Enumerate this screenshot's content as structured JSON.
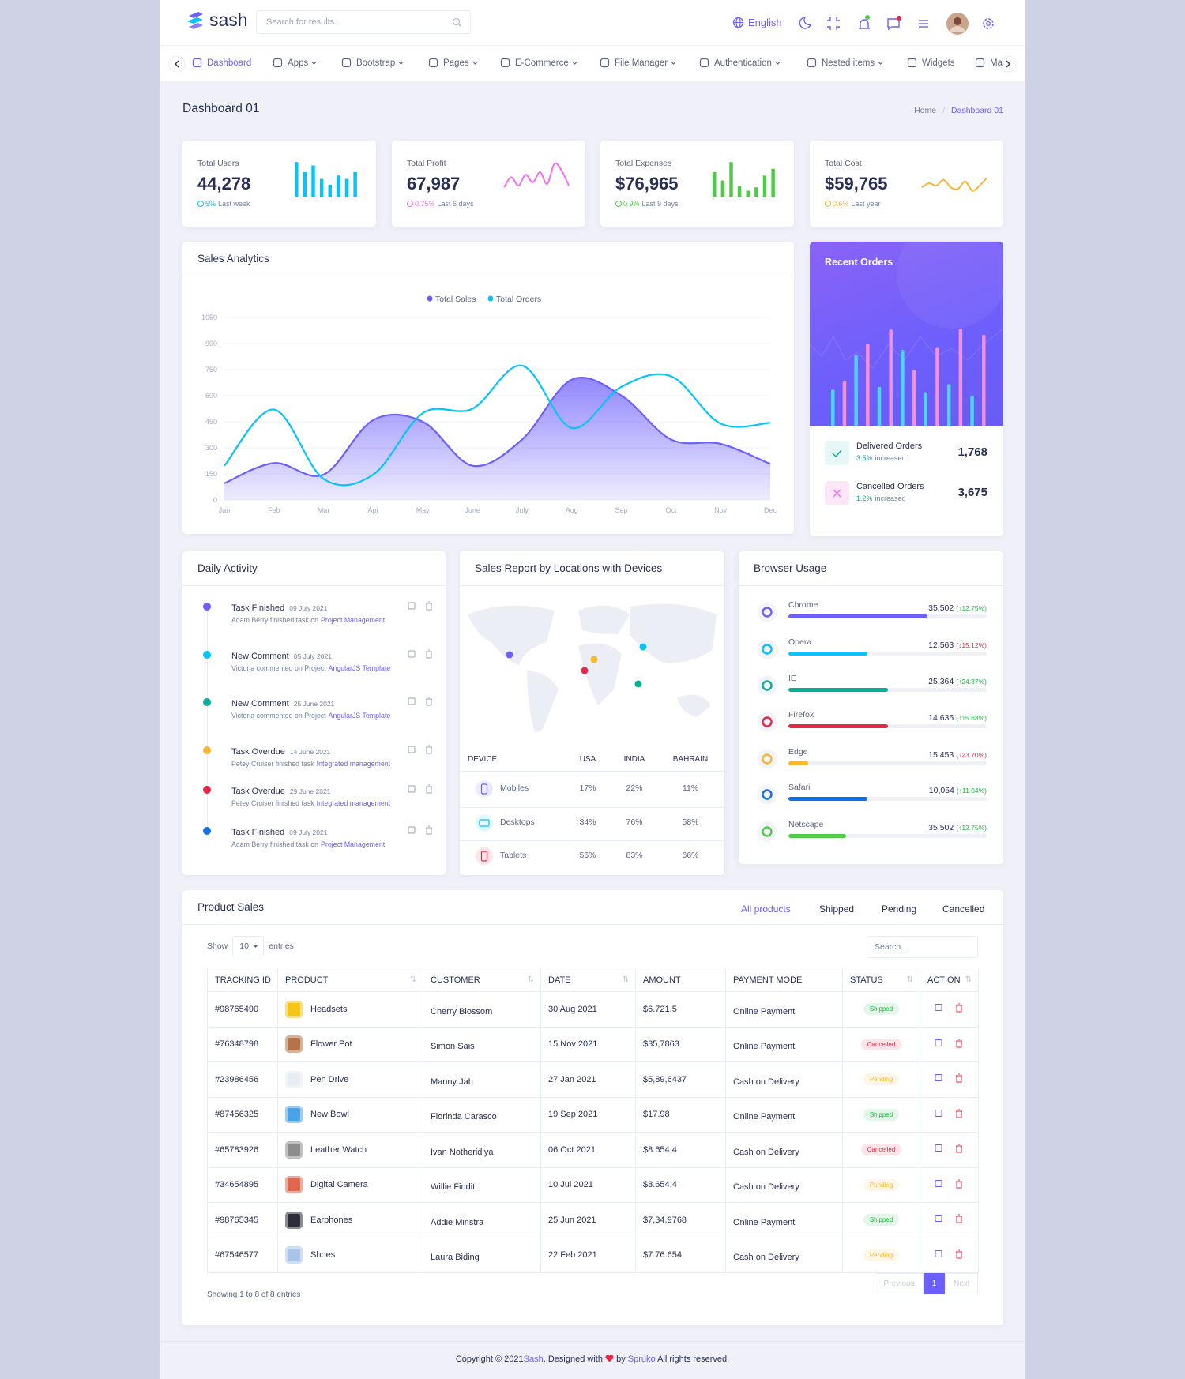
{
  "header": {
    "logo": "sash",
    "search": "Search for results...",
    "language": "English"
  },
  "nav": [
    {
      "label": "Dashboard",
      "dropdown": false
    },
    {
      "label": "Apps",
      "dropdown": true
    },
    {
      "label": "Bootstrap",
      "dropdown": true
    },
    {
      "label": "Pages",
      "dropdown": true
    },
    {
      "label": "E-Commerce",
      "dropdown": true
    },
    {
      "label": "File Manager",
      "dropdown": true
    },
    {
      "label": "Authentication",
      "dropdown": true
    },
    {
      "label": "Nested items",
      "dropdown": true
    },
    {
      "label": "Widgets",
      "dropdown": false
    },
    {
      "label": "Ma",
      "dropdown": false
    }
  ],
  "page": {
    "title": "Dashboard 01",
    "breadcrumb": [
      "Home",
      "Dashboard 01"
    ]
  },
  "stats": [
    {
      "label": "Total Users",
      "value": "44,278",
      "change": "5%",
      "period": "Last week",
      "color": "#05c3fb",
      "spark_type": "bar",
      "spark": [
        42,
        30,
        38,
        22,
        15,
        26,
        22,
        30
      ],
      "spark_lim": [
        0,
        45
      ]
    },
    {
      "label": "Total Profit",
      "value": "67,987",
      "change": "0.75%",
      "period": "Last 6 days",
      "color": "#f46ef4",
      "spark_type": "line",
      "spark": [
        12,
        24,
        14,
        27,
        18,
        30,
        16,
        40,
        32,
        14
      ],
      "spark_lim": [
        0,
        45
      ]
    },
    {
      "label": "Total Expenses",
      "value": "$76,965",
      "change": "0.9%",
      "period": "Last 9 days",
      "color": "#4ecc48",
      "spark_type": "bar",
      "spark": [
        30,
        20,
        42,
        14,
        8,
        12,
        26,
        34
      ],
      "spark_lim": [
        0,
        45
      ]
    },
    {
      "label": "Total Cost",
      "value": "$59,765",
      "change": "0.6%",
      "period": "Last year",
      "color": "#f7b731",
      "spark_type": "line",
      "spark": [
        12,
        17,
        14,
        21,
        12,
        10,
        19,
        8,
        14,
        23
      ],
      "spark_lim": [
        0,
        45
      ]
    }
  ],
  "chart_data": {
    "type": "line",
    "title": "Sales Analytics",
    "categories": [
      "Jan",
      "Feb",
      "Mar",
      "Apr",
      "May",
      "June",
      "July",
      "Aug",
      "Sep",
      "Oct",
      "Nov",
      "Dec"
    ],
    "series": [
      {
        "name": "Total Sales",
        "color": "#6c5ffc",
        "area": true,
        "values": [
          96,
          212,
          146,
          460,
          450,
          197,
          348,
          692,
          601,
          348,
          323,
          207
        ]
      },
      {
        "name": "Total Orders",
        "color": "#05c3fb",
        "area": false,
        "values": [
          197,
          520,
          121,
          146,
          500,
          525,
          773,
          414,
          651,
          712,
          439,
          444
        ]
      }
    ],
    "ylim": [
      0,
      1050
    ],
    "yticks": [
      0,
      150,
      300,
      450,
      600,
      750,
      900,
      1050
    ],
    "grid": true,
    "legend": "top"
  },
  "recent_orders": {
    "title": "Recent Orders",
    "bars": [
      42,
      52,
      81,
      94,
      45,
      110,
      87,
      64,
      39,
      90,
      48,
      111,
      35,
      104
    ],
    "ylim": [
      0,
      120
    ],
    "colors": [
      "#4dd4f0",
      "#f58fd8"
    ],
    "items": [
      {
        "label": "Delivered Orders",
        "change": "3.5%",
        "note": "increased",
        "value": "1,768",
        "color": "#09ad95"
      },
      {
        "label": "Cancelled Orders",
        "change": "1.2%",
        "note": "increased",
        "value": "3,675",
        "color": "#09ad95"
      }
    ]
  },
  "daily_activity": {
    "title": "Daily Activity",
    "items": [
      {
        "title": "Task Finished",
        "date": "09 July 2021",
        "text": "Adam Berry finished task on",
        "link": "Project Management",
        "color": "#6c5ffc"
      },
      {
        "title": "New Comment",
        "date": "05 July 2021",
        "text": "Victoria commented on Project",
        "link": "AngularJS Template",
        "color": "#05c3fb"
      },
      {
        "title": "New Comment",
        "date": "25 June 2021",
        "text": "Victoria commented on Project",
        "link": "AngularJS Template",
        "color": "#09ad95"
      },
      {
        "title": "Task Overdue",
        "date": "14 June 2021",
        "text": "Petey Cruiser finished task",
        "link": "Integrated management",
        "color": "#f7b731"
      },
      {
        "title": "Task Overdue",
        "date": "29 June 2021",
        "text": "Petey Cruiser finished task",
        "link": "Integrated management",
        "color": "#e82646"
      },
      {
        "title": "Task Finished",
        "date": "09 July 2021",
        "text": "Adam Berry finished task on",
        "link": "Project Management",
        "color": "#1170e4"
      }
    ]
  },
  "sales_report": {
    "title": "Sales Report by Locations with Devices",
    "columns": [
      "DEVICE",
      "USA",
      "INDIA",
      "BAHRAIN"
    ],
    "rows": [
      [
        "Mobiles",
        "17%",
        "22%",
        "11%"
      ],
      [
        "Desktops",
        "34%",
        "76%",
        "58%"
      ],
      [
        "Tablets",
        "56%",
        "83%",
        "66%"
      ]
    ]
  },
  "browser_usage": {
    "title": "Browser Usage",
    "items": [
      {
        "name": "Chrome",
        "value": "35,502",
        "change": "(↑12.75%)",
        "trend": "up",
        "progress": 70,
        "color": "#6c5ffc"
      },
      {
        "name": "Opera",
        "value": "12,563",
        "change": "(↓15.12%)",
        "trend": "down",
        "progress": 40,
        "color": "#05c3fb"
      },
      {
        "name": "IE",
        "value": "25,364",
        "change": "(↑24.37%)",
        "trend": "up",
        "progress": 50,
        "color": "#09ad95"
      },
      {
        "name": "Firefox",
        "value": "14,635",
        "change": "(↑15.63%)",
        "trend": "up",
        "progress": 50,
        "color": "#e82646"
      },
      {
        "name": "Edge",
        "value": "15,453",
        "change": "(↓23.70%)",
        "trend": "down",
        "progress": 10,
        "color": "#f7b731"
      },
      {
        "name": "Safari",
        "value": "10,054",
        "change": "(↑11.04%)",
        "trend": "up",
        "progress": 40,
        "color": "#1170e4"
      },
      {
        "name": "Netscape",
        "value": "35,502",
        "change": "(↑12.75%)",
        "trend": "up",
        "progress": 29,
        "color": "#4ecc48"
      }
    ]
  },
  "product_sales": {
    "title": "Product Sales",
    "tabs": [
      "All products",
      "Shipped",
      "Pending",
      "Cancelled"
    ],
    "show": "Show",
    "page_size": "10",
    "entries": "entries",
    "search": "Search...",
    "columns": [
      "TRACKING ID",
      "PRODUCT",
      "CUSTOMER",
      "DATE",
      "AMOUNT",
      "PAYMENT MODE",
      "STATUS",
      "ACTION"
    ],
    "rows": [
      {
        "id": "#98765490",
        "product": "Headsets",
        "customer": "Cherry Blossom",
        "date": "30 Aug 2021",
        "amount": "$6.721.5",
        "payment": "Online Payment",
        "status": "Shipped",
        "status_color": "#13bf3c"
      },
      {
        "id": "#76348798",
        "product": "Flower Pot",
        "customer": "Simon Sais",
        "date": "15 Nov 2021",
        "amount": "$35,7863",
        "payment": "Online Payment",
        "status": "Cancelled",
        "status_color": "#e82646"
      },
      {
        "id": "#23986456",
        "product": "Pen Drive",
        "customer": "Manny Jah",
        "date": "27 Jan 2021",
        "amount": "$5,89,6437",
        "payment": "Cash on Delivery",
        "status": "Pending",
        "status_color": "#f7b731"
      },
      {
        "id": "#87456325",
        "product": "New Bowl",
        "customer": "Florinda Carasco",
        "date": "19 Sep 2021",
        "amount": "$17.98",
        "payment": "Online Payment",
        "status": "Shipped",
        "status_color": "#13bf3c"
      },
      {
        "id": "#65783926",
        "product": "Leather Watch",
        "customer": "Ivan Notheridiya",
        "date": "06 Oct 2021",
        "amount": "$8.654.4",
        "payment": "Cash on Delivery",
        "status": "Cancelled",
        "status_color": "#e82646"
      },
      {
        "id": "#34654895",
        "product": "Digital Camera",
        "customer": "Willie Findit",
        "date": "10 Jul 2021",
        "amount": "$8.654.4",
        "payment": "Cash on Delivery",
        "status": "Pending",
        "status_color": "#f7b731"
      },
      {
        "id": "#98765345",
        "product": "Earphones",
        "customer": "Addie Minstra",
        "date": "25 Jun 2021",
        "amount": "$7,34,9768",
        "payment": "Online Payment",
        "status": "Shipped",
        "status_color": "#13bf3c"
      },
      {
        "id": "#67546577",
        "product": "Shoes",
        "customer": "Laura Biding",
        "date": "22 Feb 2021",
        "amount": "$7.76.654",
        "payment": "Cash on Delivery",
        "status": "Pending",
        "status_color": "#f7b731"
      }
    ],
    "info": "Showing 1 to 8 of 8 entries",
    "pagination": [
      "Previous",
      "1",
      "Next"
    ]
  },
  "footer": {
    "prefix": "Copyright © 2021",
    "brand": "Sash",
    "middle": ". Designed with",
    "by": "by",
    "company": "Spruko",
    "suffix": "All rights reserved."
  }
}
